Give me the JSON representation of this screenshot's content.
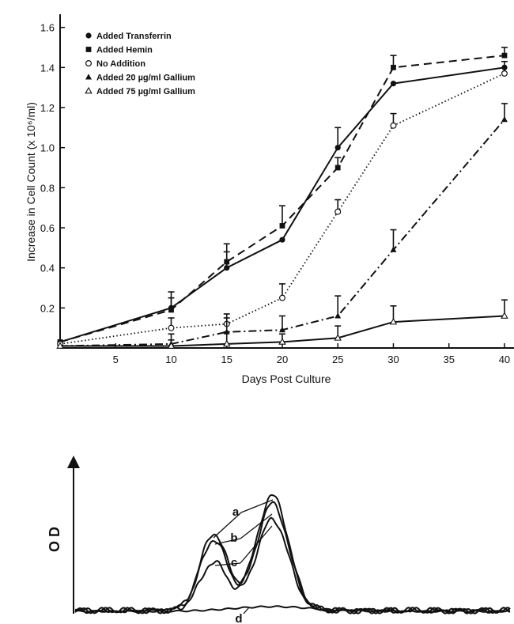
{
  "chart_data": [
    {
      "type": "line",
      "title": "",
      "xlabel": "Days Post Culture",
      "ylabel": "Increase in Cell Count (x 10⁶/ml)",
      "xlim": [
        0,
        41
      ],
      "ylim": [
        0,
        1.65
      ],
      "xticks": [
        5,
        10,
        15,
        20,
        25,
        30,
        35,
        40
      ],
      "yticks": [
        0.2,
        0.4,
        0.6,
        0.8,
        1.0,
        1.2,
        1.4,
        1.6
      ],
      "ytick_labels": [
        "0.2",
        "0.4",
        "0.6",
        "0.8",
        "1.0",
        "1.2",
        "1.4",
        "1.6"
      ],
      "grid": false,
      "legend_position": "top-left",
      "series": [
        {
          "name": "Added Transferrin",
          "marker": "filled-circle",
          "line": "solid",
          "x": [
            0,
            10,
            15,
            20,
            25,
            30,
            40
          ],
          "y": [
            0.03,
            0.2,
            0.4,
            0.54,
            1.0,
            1.32,
            1.4
          ],
          "err": [
            0,
            0.08,
            0.12,
            0,
            0.1,
            0,
            0
          ]
        },
        {
          "name": "Added Hemin",
          "marker": "filled-square",
          "line": "dashed",
          "x": [
            0,
            10,
            15,
            20,
            25,
            30,
            40
          ],
          "y": [
            0.03,
            0.19,
            0.43,
            0.61,
            0.9,
            1.4,
            1.46
          ],
          "err": [
            0,
            0.06,
            0.05,
            0.1,
            0.05,
            0.06,
            0.04
          ]
        },
        {
          "name": "No Addition",
          "marker": "open-circle",
          "line": "dotted",
          "x": [
            0,
            10,
            15,
            20,
            25,
            30,
            40
          ],
          "y": [
            0.02,
            0.1,
            0.12,
            0.25,
            0.68,
            1.11,
            1.37
          ],
          "err": [
            0,
            0.05,
            0.05,
            0.07,
            0.06,
            0.06,
            0.06
          ]
        },
        {
          "name": "Added 20 µg/ml Gallium",
          "marker": "filled-triangle",
          "line": "dashdot",
          "x": [
            0,
            10,
            15,
            20,
            25,
            30,
            40
          ],
          "y": [
            0.01,
            0.02,
            0.08,
            0.09,
            0.16,
            0.49,
            1.14
          ],
          "err": [
            0,
            0.05,
            0.07,
            0.07,
            0.1,
            0.1,
            0.08
          ]
        },
        {
          "name": "Added 75 µg/ml Gallium",
          "marker": "open-triangle",
          "line": "solid",
          "x": [
            0,
            10,
            15,
            20,
            25,
            30,
            40
          ],
          "y": [
            0.01,
            0.01,
            0.02,
            0.03,
            0.05,
            0.13,
            0.16
          ],
          "err": [
            0,
            0.03,
            0.06,
            0.04,
            0.06,
            0.08,
            0.08
          ]
        }
      ]
    },
    {
      "type": "line",
      "title": "",
      "ylabel": "O D",
      "xlabel": "",
      "grid": false,
      "curve_labels": [
        "a",
        "b",
        "c",
        "d"
      ]
    }
  ]
}
